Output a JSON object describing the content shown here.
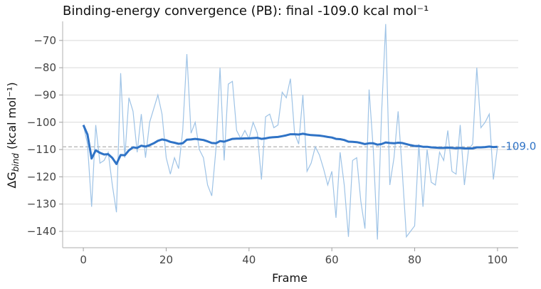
{
  "chart_data": {
    "type": "line",
    "title": "Binding-energy convergence (PB): final -109.0 kcal mol⁻¹",
    "xlabel": "Frame",
    "ylabel_prefix": "ΔG",
    "ylabel_sub": "bind",
    "ylabel_suffix": " (kcal mol⁻¹)",
    "xlim": [
      -5,
      105
    ],
    "ylim": [
      -146,
      -63
    ],
    "xticks": [
      0,
      20,
      40,
      60,
      80,
      100
    ],
    "yticks": [
      -140,
      -130,
      -120,
      -110,
      -100,
      -90,
      -80,
      -70
    ],
    "grid": "horizontal",
    "colors": {
      "raw": "#9ec3e6",
      "running_mean": "#2f73c6",
      "final_line": "#b0b0b0",
      "final_label": "#2f73c6"
    },
    "final_value": -109.0,
    "final_label": "-109.0",
    "x": [
      0,
      1,
      2,
      3,
      4,
      5,
      6,
      7,
      8,
      9,
      10,
      11,
      12,
      13,
      14,
      15,
      16,
      17,
      18,
      19,
      20,
      21,
      22,
      23,
      24,
      25,
      26,
      27,
      28,
      29,
      30,
      31,
      32,
      33,
      34,
      35,
      36,
      37,
      38,
      39,
      40,
      41,
      42,
      43,
      44,
      45,
      46,
      47,
      48,
      49,
      50,
      51,
      52,
      53,
      54,
      55,
      56,
      57,
      58,
      59,
      60,
      61,
      62,
      63,
      64,
      65,
      66,
      67,
      68,
      69,
      70,
      71,
      72,
      73,
      74,
      75,
      76,
      77,
      78,
      79,
      80,
      81,
      82,
      83,
      84,
      85,
      86,
      87,
      88,
      89,
      90,
      91,
      92,
      93,
      94,
      95,
      96,
      97,
      98,
      99,
      100
    ],
    "series": [
      {
        "id": "raw",
        "values": [
          -101,
          -108,
          -131,
          -101,
          -115,
          -114,
          -111,
          -123,
          -133,
          -82,
          -113,
          -91,
          -96,
          -111,
          -97,
          -113,
          -100,
          -95,
          -90,
          -97,
          -113,
          -119,
          -113,
          -117,
          -103,
          -75,
          -104,
          -100,
          -110,
          -113,
          -123,
          -127,
          -110,
          -80,
          -114,
          -86,
          -85,
          -103,
          -106,
          -103,
          -106,
          -100,
          -104,
          -121,
          -98,
          -97,
          -102,
          -101,
          -89,
          -91,
          -84,
          -104,
          -108,
          -90,
          -118,
          -115,
          -109,
          -112,
          -117,
          -123,
          -118,
          -135,
          -111,
          -123,
          -142,
          -114,
          -113,
          -129,
          -139,
          -88,
          -110,
          -143,
          -97,
          -64,
          -123,
          -113,
          -96,
          -118,
          -142,
          -140,
          -138,
          -108,
          -131,
          -110,
          -122,
          -123,
          -111,
          -114,
          -103,
          -118,
          -119,
          -101,
          -123,
          -110,
          -108,
          -80,
          -102,
          -100,
          -97,
          -121,
          -109
        ]
      },
      {
        "id": "running_mean",
        "values": [
          -101,
          -104.5,
          -113.3,
          -110.3,
          -111.2,
          -111.8,
          -111.7,
          -113.1,
          -115.3,
          -112,
          -112.1,
          -110.3,
          -109.2,
          -109.4,
          -108.6,
          -108.9,
          -108.4,
          -107.7,
          -106.8,
          -106.3,
          -106.6,
          -107.2,
          -107.5,
          -107.9,
          -107.7,
          -106.4,
          -106.3,
          -106.1,
          -106.3,
          -106.5,
          -107,
          -107.6,
          -107.7,
          -106.9,
          -107.1,
          -106.6,
          -106.1,
          -106,
          -106,
          -105.9,
          -105.9,
          -105.8,
          -105.7,
          -106.1,
          -105.9,
          -105.6,
          -105.5,
          -105.4,
          -105.1,
          -104.8,
          -104.4,
          -104.4,
          -104.5,
          -104.2,
          -104.5,
          -104.7,
          -104.8,
          -104.9,
          -105.1,
          -105.4,
          -105.6,
          -106.1,
          -106.2,
          -106.5,
          -107.1,
          -107.2,
          -107.3,
          -107.6,
          -108,
          -107.7,
          -107.7,
          -108.2,
          -108,
          -107.4,
          -107.6,
          -107.7,
          -107.5,
          -107.6,
          -108,
          -108.4,
          -108.7,
          -108.7,
          -109,
          -109,
          -109.2,
          -109.3,
          -109.4,
          -109.4,
          -109.3,
          -109.4,
          -109.5,
          -109.4,
          -109.6,
          -109.6,
          -109.6,
          -109.2,
          -109.2,
          -109.1,
          -108.9,
          -109.1,
          -109.0
        ]
      }
    ]
  }
}
